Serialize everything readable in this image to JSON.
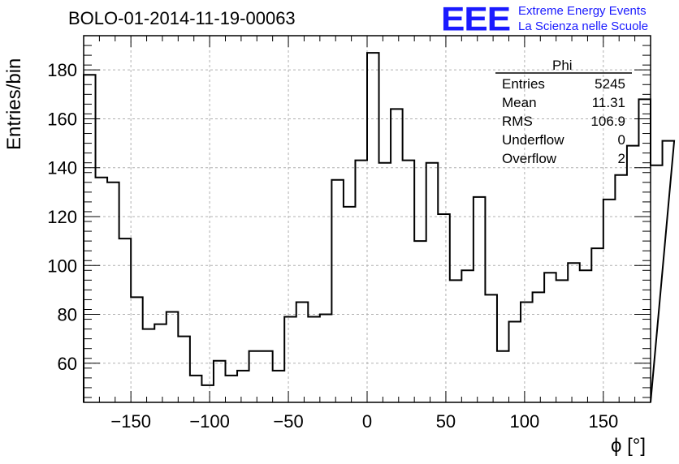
{
  "title": "BOLO-01-2014-11-19-00063",
  "logo": {
    "mark": "EEE",
    "line1": "Extreme Energy Events",
    "line2": "La Scienza nelle Scuole"
  },
  "stats": {
    "name": "Phi",
    "rows": [
      {
        "label": "Entries",
        "value": "5245"
      },
      {
        "label": "Mean",
        "value": "11.31"
      },
      {
        "label": "RMS",
        "value": "106.9"
      },
      {
        "label": "Underflow",
        "value": "0"
      },
      {
        "label": "Overflow",
        "value": "2"
      }
    ]
  },
  "chart_data": {
    "type": "bar",
    "title": "BOLO-01-2014-11-19-00063",
    "xlabel": "ϕ [°]",
    "ylabel": "Entries/bin",
    "xlim": [
      -180,
      180
    ],
    "ylim": [
      44,
      194
    ],
    "bin_width": 7.5,
    "grid": true,
    "xticks": [
      -150,
      -100,
      -50,
      0,
      50,
      100,
      150
    ],
    "xtick_labels": [
      "−150",
      "−100",
      "−50",
      "0",
      "50",
      "100",
      "150"
    ],
    "yticks": [
      60,
      80,
      100,
      120,
      140,
      160,
      180
    ],
    "values": [
      178,
      136,
      134,
      111,
      87,
      74,
      76,
      81,
      71,
      55,
      51,
      61,
      55,
      57,
      65,
      65,
      57,
      79,
      85,
      79,
      80,
      135,
      124,
      143,
      187,
      142,
      164,
      143,
      110,
      142,
      121,
      94,
      98,
      128,
      88,
      65,
      77,
      85,
      89,
      97,
      94,
      101,
      98,
      107,
      127,
      137,
      149,
      168,
      141,
      151
    ]
  }
}
